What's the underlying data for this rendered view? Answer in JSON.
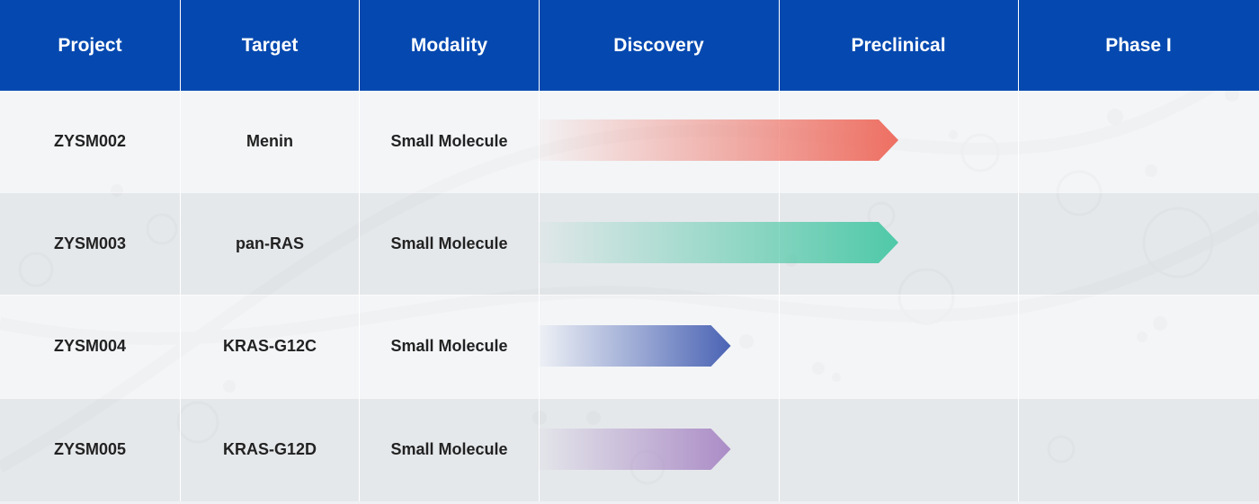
{
  "header": {
    "project": "Project",
    "target": "Target",
    "modality": "Modality",
    "discovery": "Discovery",
    "preclinical": "Preclinical",
    "phase1": "Phase I"
  },
  "rows": [
    {
      "project": "ZYSM002",
      "target": "Menin",
      "modality": "Small Molecule"
    },
    {
      "project": "ZYSM003",
      "target": "pan-RAS",
      "modality": "Small Molecule"
    },
    {
      "project": "ZYSM004",
      "target": "KRAS-G12C",
      "modality": "Small Molecule"
    },
    {
      "project": "ZYSM005",
      "target": "KRAS-G12D",
      "modality": "Small Molecule"
    }
  ],
  "chart_data": {
    "type": "bar",
    "orientation": "horizontal",
    "stages": [
      "Discovery",
      "Preclinical",
      "Phase I"
    ],
    "categories": [
      "ZYSM002",
      "ZYSM003",
      "ZYSM004",
      "ZYSM005"
    ],
    "progress_stage_units": [
      1.5,
      1.5,
      0.8,
      0.8
    ],
    "colors": [
      "#ee6f62",
      "#4fc9a8",
      "#4a63b4",
      "#ab8cc6"
    ]
  },
  "colors": {
    "header_bg": "#0549b0",
    "header_text": "#ffffff",
    "row_light": "#f3f4f6",
    "row_dark": "#e3e5e8"
  }
}
